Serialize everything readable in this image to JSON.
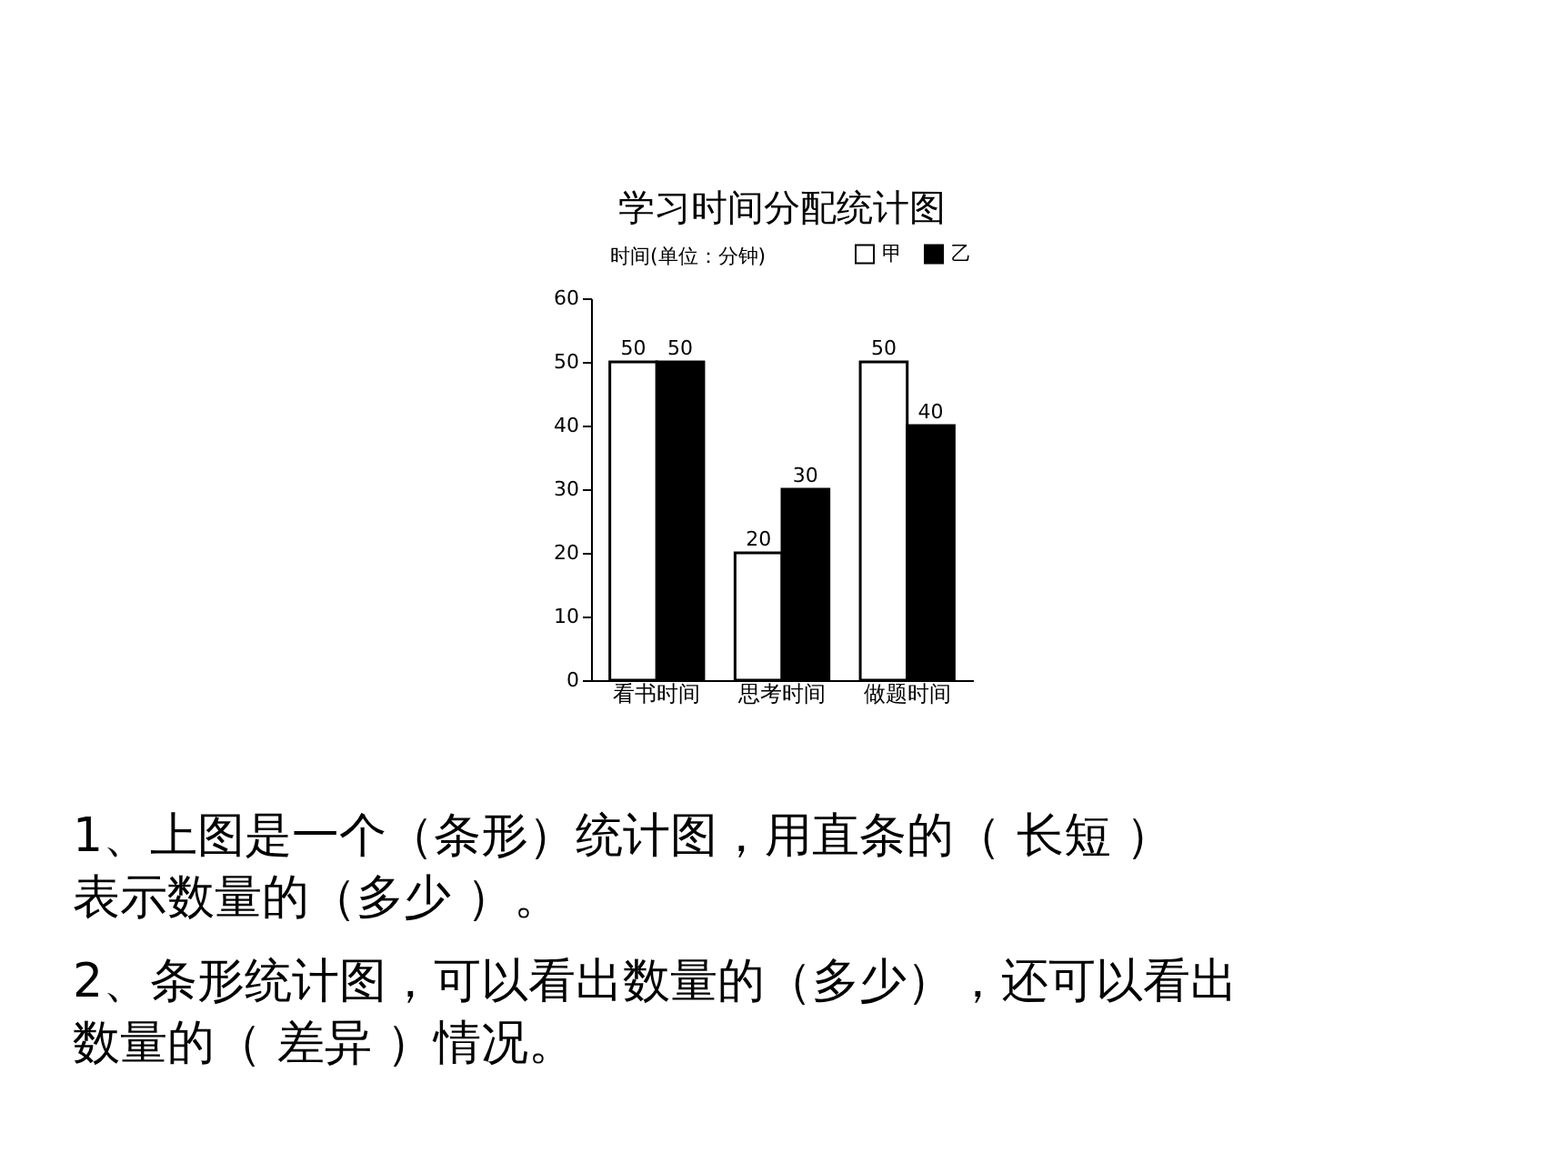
{
  "chart_data": {
    "type": "bar",
    "title": "学习时间分配统计图",
    "ylabel": "时间(单位：分钟)",
    "categories": [
      "看书时间",
      "思考时间",
      "做题时间"
    ],
    "series": [
      {
        "name": "甲",
        "color": "#ffffff",
        "values": [
          50,
          20,
          50
        ]
      },
      {
        "name": "乙",
        "color": "#000000",
        "values": [
          50,
          30,
          40
        ]
      }
    ],
    "ylim": [
      0,
      60
    ],
    "yticks": [
      0,
      10,
      20,
      30,
      40,
      50,
      60
    ],
    "data_labels": true,
    "legend": "top",
    "grid": false,
    "annotations": [
      "1、上图是一个（条形）统计图，用直条的（ 长短 ）表示数量的（多少 ）。",
      "2、条形统计图，可以看出数量的（多少），还可以看出数量的（ 差异 ）情况。"
    ]
  }
}
